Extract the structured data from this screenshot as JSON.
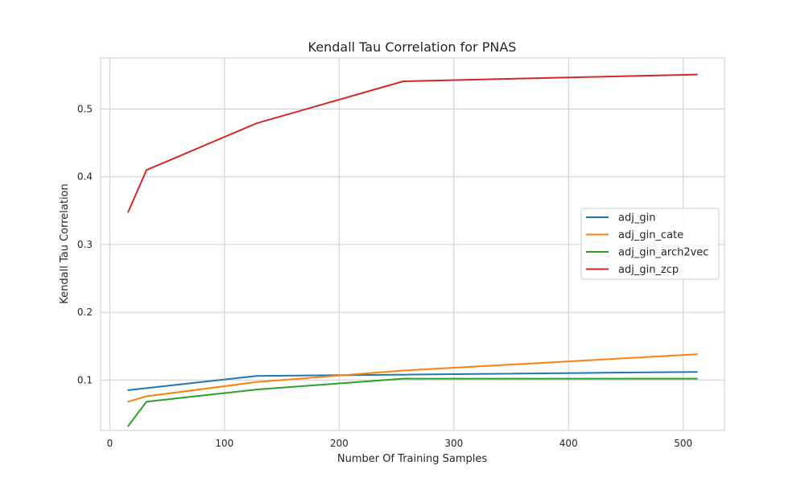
{
  "chart_data": {
    "type": "line",
    "title": "Kendall Tau Correlation for PNAS",
    "xlabel": "Number Of Training Samples",
    "ylabel": "Kendall Tau Correlation",
    "xlim": [
      -8,
      536
    ],
    "ylim": [
      0.0255,
      0.5755
    ],
    "xticks": [
      0,
      100,
      200,
      300,
      400,
      500
    ],
    "yticks": [
      0.1,
      0.2,
      0.3,
      0.4,
      0.5
    ],
    "xtick_labels": [
      "0",
      "100",
      "200",
      "300",
      "400",
      "500"
    ],
    "ytick_labels": [
      "0.1",
      "0.2",
      "0.3",
      "0.4",
      "0.5"
    ],
    "grid": true,
    "legend_position": "center-right",
    "x": [
      16,
      32,
      128,
      256,
      512
    ],
    "series": [
      {
        "name": "adj_gin",
        "color": "#1f77b4",
        "values": [
          0.085,
          0.088,
          0.106,
          0.108,
          0.112
        ]
      },
      {
        "name": "adj_gin_cate",
        "color": "#ff7f0e",
        "values": [
          0.068,
          0.076,
          0.097,
          0.114,
          0.138
        ]
      },
      {
        "name": "adj_gin_arch2vec",
        "color": "#2ca02c",
        "values": [
          0.032,
          0.068,
          0.086,
          0.102,
          0.102
        ]
      },
      {
        "name": "adj_gin_zcp",
        "color": "#d62728",
        "values": [
          0.348,
          0.41,
          0.479,
          0.541,
          0.551
        ]
      }
    ]
  }
}
